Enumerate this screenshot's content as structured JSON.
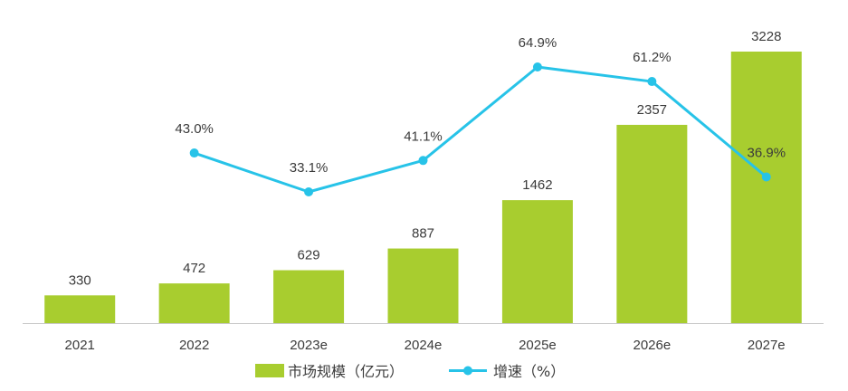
{
  "chart_data": {
    "type": "bar",
    "categories": [
      "2021",
      "2022",
      "2023e",
      "2024e",
      "2025e",
      "2026e",
      "2027e"
    ],
    "series": [
      {
        "name": "市场规模（亿元）",
        "type": "bar",
        "axis": "left",
        "values": [
          330,
          472,
          629,
          887,
          1462,
          2357,
          3228
        ],
        "labels": [
          "330",
          "472",
          "629",
          "887",
          "1462",
          "2357",
          "3228"
        ]
      },
      {
        "name": "增速（%）",
        "type": "line",
        "axis": "right",
        "values": [
          null,
          43.0,
          33.1,
          41.1,
          64.9,
          61.2,
          36.9
        ],
        "labels": [
          "",
          "43.0%",
          "33.1%",
          "41.1%",
          "64.9%",
          "61.2%",
          "36.9%"
        ]
      }
    ],
    "legend": [
      "市场规模（亿元）",
      "增速（%）"
    ],
    "legend_position": "bottom",
    "grid": false,
    "colors": {
      "bar": "#a8cd2f",
      "line": "#27c3e8",
      "axis": "#c8c8c8",
      "text": "#3b3b3b"
    }
  }
}
